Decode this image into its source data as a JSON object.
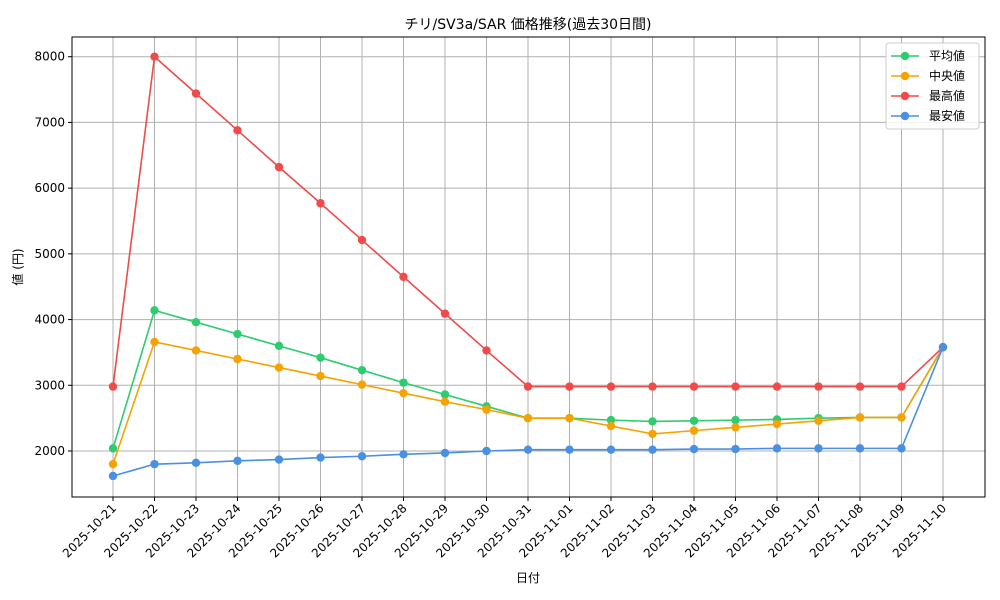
{
  "chart_data": {
    "type": "line",
    "title": "チリ/SV3a/SAR 価格推移(過去30日間)",
    "xlabel": "日付",
    "ylabel": "値 (円)",
    "x": [
      "2025-10-21",
      "2025-10-22",
      "2025-10-23",
      "2025-10-24",
      "2025-10-25",
      "2025-10-26",
      "2025-10-27",
      "2025-10-28",
      "2025-10-29",
      "2025-10-30",
      "2025-10-31",
      "2025-11-01",
      "2025-11-02",
      "2025-11-03",
      "2025-11-04",
      "2025-11-05",
      "2025-11-06",
      "2025-11-07",
      "2025-11-08",
      "2025-11-09",
      "2025-11-10"
    ],
    "yticks": [
      2000,
      3000,
      4000,
      5000,
      6000,
      7000,
      8000
    ],
    "ylim": [
      1300,
      8300
    ],
    "grid": true,
    "legend_position": "top-right",
    "series": [
      {
        "name": "平均値",
        "color": "#2ecc71",
        "values": [
          2040,
          4140,
          3960,
          3780,
          3600,
          3420,
          3230,
          3040,
          2860,
          2680,
          2500,
          2500,
          2470,
          2450,
          2460,
          2470,
          2480,
          2500,
          2510,
          2510,
          3580
        ]
      },
      {
        "name": "中央値",
        "color": "#f5a300",
        "values": [
          1800,
          3660,
          3530,
          3400,
          3270,
          3140,
          3010,
          2880,
          2750,
          2630,
          2500,
          2500,
          2380,
          2260,
          2310,
          2360,
          2410,
          2460,
          2510,
          2510,
          3580
        ]
      },
      {
        "name": "最高値",
        "color": "#f04a4a",
        "values": [
          2980,
          8000,
          7440,
          6880,
          6320,
          5770,
          5210,
          4650,
          4090,
          3530,
          2980,
          2980,
          2980,
          2980,
          2980,
          2980,
          2980,
          2980,
          2980,
          2980,
          3580
        ]
      },
      {
        "name": "最安値",
        "color": "#4a90e2",
        "values": [
          1620,
          1800,
          1820,
          1850,
          1870,
          1900,
          1920,
          1950,
          1970,
          2000,
          2020,
          2020,
          2020,
          2020,
          2030,
          2030,
          2040,
          2040,
          2040,
          2040,
          3580
        ]
      }
    ]
  }
}
